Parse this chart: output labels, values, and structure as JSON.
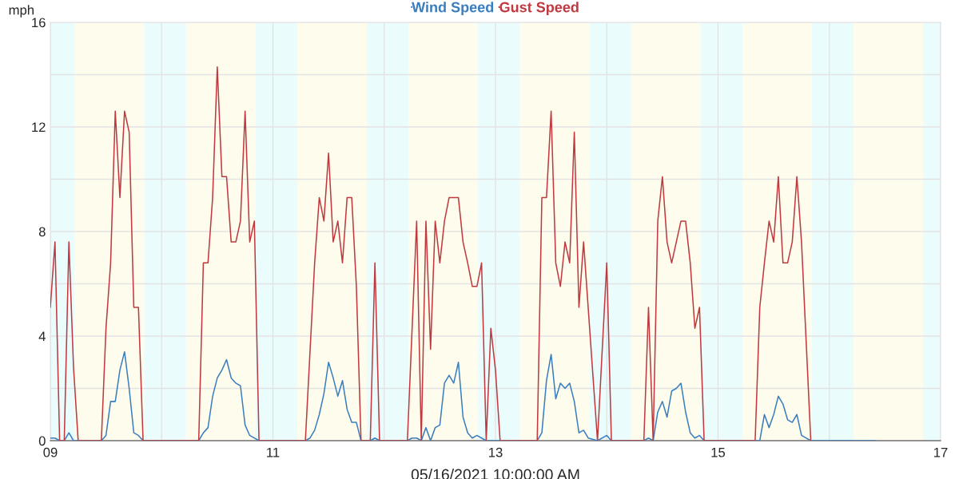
{
  "chart_data": {
    "type": "line",
    "xlabel": "05/16/2021 10:00:00 AM",
    "ylabel": "mph",
    "xlim": [
      "2021-05-09T00:00",
      "2021-05-17T00:00"
    ],
    "xticks": [
      {
        "value": "2021-05-09",
        "label": "09"
      },
      {
        "value": "2021-05-10",
        "label": null
      },
      {
        "value": "2021-05-11",
        "label": "11"
      },
      {
        "value": "2021-05-12",
        "label": null
      },
      {
        "value": "2021-05-13",
        "label": "13"
      },
      {
        "value": "2021-05-14",
        "label": null
      },
      {
        "value": "2021-05-15",
        "label": "15"
      },
      {
        "value": "2021-05-16",
        "label": null
      },
      {
        "value": "2021-05-17",
        "label": "17"
      }
    ],
    "ylim": [
      0,
      16
    ],
    "yticks": [
      0,
      {
        "value": 2,
        "label": null
      },
      4,
      {
        "value": 6,
        "label": null
      },
      8,
      {
        "value": 10,
        "label": null
      },
      12,
      {
        "value": 14,
        "label": null
      },
      16
    ],
    "grid": true,
    "legend": "top",
    "marker": "none",
    "line_style": "solid",
    "series": [
      {
        "name": "Wind Speed",
        "color": "#3a7ebf",
        "x": [
          "2021-05-09T00:00",
          "2021-05-09T01:00",
          "2021-05-09T02:00",
          "2021-05-09T03:00",
          "2021-05-09T04:00",
          "2021-05-09T05:00",
          "2021-05-09T11:00",
          "2021-05-09T12:00",
          "2021-05-09T13:00",
          "2021-05-09T14:00",
          "2021-05-09T15:00",
          "2021-05-09T16:00",
          "2021-05-09T17:00",
          "2021-05-09T18:00",
          "2021-05-09T19:00",
          "2021-05-09T20:00",
          "2021-05-10T08:00",
          "2021-05-10T09:00",
          "2021-05-10T10:00",
          "2021-05-10T11:00",
          "2021-05-10T12:00",
          "2021-05-10T13:00",
          "2021-05-10T14:00",
          "2021-05-10T15:00",
          "2021-05-10T16:00",
          "2021-05-10T17:00",
          "2021-05-10T18:00",
          "2021-05-10T19:00",
          "2021-05-10T21:00",
          "2021-05-11T07:00",
          "2021-05-11T08:00",
          "2021-05-11T09:00",
          "2021-05-11T10:00",
          "2021-05-11T11:00",
          "2021-05-11T12:00",
          "2021-05-11T13:00",
          "2021-05-11T14:00",
          "2021-05-11T15:00",
          "2021-05-11T16:00",
          "2021-05-11T17:00",
          "2021-05-11T18:00",
          "2021-05-11T19:00",
          "2021-05-11T21:00",
          "2021-05-11T22:00",
          "2021-05-11T23:00",
          "2021-05-12T05:00",
          "2021-05-12T06:00",
          "2021-05-12T07:00",
          "2021-05-12T08:00",
          "2021-05-12T09:00",
          "2021-05-12T10:00",
          "2021-05-12T11:00",
          "2021-05-12T12:00",
          "2021-05-12T13:00",
          "2021-05-12T14:00",
          "2021-05-12T15:00",
          "2021-05-12T16:00",
          "2021-05-12T17:00",
          "2021-05-12T18:00",
          "2021-05-12T19:00",
          "2021-05-12T20:00",
          "2021-05-12T21:00",
          "2021-05-12T22:00",
          "2021-05-13T09:00",
          "2021-05-13T10:00",
          "2021-05-13T11:00",
          "2021-05-13T12:00",
          "2021-05-13T13:00",
          "2021-05-13T14:00",
          "2021-05-13T15:00",
          "2021-05-13T16:00",
          "2021-05-13T17:00",
          "2021-05-13T18:00",
          "2021-05-13T19:00",
          "2021-05-13T20:00",
          "2021-05-13T22:00",
          "2021-05-14T00:00",
          "2021-05-14T01:00",
          "2021-05-14T08:00",
          "2021-05-14T09:00",
          "2021-05-14T10:00",
          "2021-05-14T11:00",
          "2021-05-14T12:00",
          "2021-05-14T13:00",
          "2021-05-14T14:00",
          "2021-05-14T15:00",
          "2021-05-14T16:00",
          "2021-05-14T17:00",
          "2021-05-14T18:00",
          "2021-05-14T19:00",
          "2021-05-14T20:00",
          "2021-05-14T21:00",
          "2021-05-15T09:00",
          "2021-05-15T10:00",
          "2021-05-15T11:00",
          "2021-05-15T12:00",
          "2021-05-15T13:00",
          "2021-05-15T14:00",
          "2021-05-15T15:00",
          "2021-05-15T16:00",
          "2021-05-15T17:00",
          "2021-05-15T18:00",
          "2021-05-15T20:00",
          "2021-05-16T10:00"
        ],
        "values": [
          0.1,
          0.1,
          0,
          0,
          0.3,
          0,
          0,
          0.2,
          1.5,
          1.5,
          2.7,
          3.4,
          2.0,
          0.3,
          0.2,
          0,
          0,
          0.3,
          0.5,
          1.7,
          2.4,
          2.7,
          3.1,
          2.4,
          2.2,
          2.1,
          0.6,
          0.2,
          0,
          0,
          0.1,
          0.4,
          1.0,
          1.8,
          3.0,
          2.4,
          1.7,
          2.3,
          1.2,
          0.7,
          0.7,
          0,
          0,
          0.1,
          0,
          0,
          0.1,
          0.1,
          0,
          0.5,
          0,
          0.5,
          0.6,
          2.2,
          2.5,
          2.2,
          3.0,
          0.9,
          0.3,
          0.1,
          0.2,
          0.1,
          0,
          0,
          0.3,
          2.3,
          3.3,
          1.6,
          2.2,
          2.0,
          2.2,
          1.5,
          0.3,
          0.4,
          0.1,
          0,
          0.2,
          0,
          0,
          0.1,
          0,
          1.1,
          1.5,
          0.9,
          1.9,
          2.0,
          2.2,
          1.1,
          0.3,
          0.1,
          0.2,
          0,
          0,
          1.0,
          0.5,
          1.0,
          1.7,
          1.4,
          0.8,
          0.7,
          1.0,
          0.2,
          0,
          0
        ]
      },
      {
        "name": "Gust Speed",
        "color": "#c0393f",
        "x": [
          "2021-05-09T00:00",
          "2021-05-09T01:00",
          "2021-05-09T02:00",
          "2021-05-09T03:00",
          "2021-05-09T04:00",
          "2021-05-09T05:00",
          "2021-05-09T06:00",
          "2021-05-09T11:00",
          "2021-05-09T12:00",
          "2021-05-09T13:00",
          "2021-05-09T14:00",
          "2021-05-09T15:00",
          "2021-05-09T16:00",
          "2021-05-09T17:00",
          "2021-05-09T18:00",
          "2021-05-09T19:00",
          "2021-05-09T20:00",
          "2021-05-10T08:00",
          "2021-05-10T09:00",
          "2021-05-10T10:00",
          "2021-05-10T11:00",
          "2021-05-10T12:00",
          "2021-05-10T13:00",
          "2021-05-10T14:00",
          "2021-05-10T15:00",
          "2021-05-10T16:00",
          "2021-05-10T17:00",
          "2021-05-10T18:00",
          "2021-05-10T19:00",
          "2021-05-10T20:00",
          "2021-05-10T21:00",
          "2021-05-11T07:00",
          "2021-05-11T09:00",
          "2021-05-11T10:00",
          "2021-05-11T11:00",
          "2021-05-11T12:00",
          "2021-05-11T13:00",
          "2021-05-11T14:00",
          "2021-05-11T15:00",
          "2021-05-11T16:00",
          "2021-05-11T17:00",
          "2021-05-11T18:00",
          "2021-05-11T19:00",
          "2021-05-11T21:00",
          "2021-05-11T22:00",
          "2021-05-11T23:00",
          "2021-05-12T05:00",
          "2021-05-12T07:00",
          "2021-05-12T08:00",
          "2021-05-12T09:00",
          "2021-05-12T10:00",
          "2021-05-12T11:00",
          "2021-05-12T12:00",
          "2021-05-12T13:00",
          "2021-05-12T14:00",
          "2021-05-12T15:00",
          "2021-05-12T16:00",
          "2021-05-12T17:00",
          "2021-05-12T18:00",
          "2021-05-12T19:00",
          "2021-05-12T20:00",
          "2021-05-12T21:00",
          "2021-05-12T22:00",
          "2021-05-12T23:00",
          "2021-05-13T00:00",
          "2021-05-13T01:00",
          "2021-05-13T09:00",
          "2021-05-13T10:00",
          "2021-05-13T11:00",
          "2021-05-13T12:00",
          "2021-05-13T13:00",
          "2021-05-13T14:00",
          "2021-05-13T15:00",
          "2021-05-13T16:00",
          "2021-05-13T17:00",
          "2021-05-13T18:00",
          "2021-05-13T19:00",
          "2021-05-13T22:00",
          "2021-05-14T00:00",
          "2021-05-14T01:00",
          "2021-05-14T08:00",
          "2021-05-14T09:00",
          "2021-05-14T10:00",
          "2021-05-14T11:00",
          "2021-05-14T12:00",
          "2021-05-14T13:00",
          "2021-05-14T14:00",
          "2021-05-14T15:00",
          "2021-05-14T16:00",
          "2021-05-14T17:00",
          "2021-05-14T18:00",
          "2021-05-14T19:00",
          "2021-05-14T20:00",
          "2021-05-14T21:00",
          "2021-05-15T08:00",
          "2021-05-15T09:00",
          "2021-05-15T10:00",
          "2021-05-15T11:00",
          "2021-05-15T12:00",
          "2021-05-15T13:00",
          "2021-05-15T14:00",
          "2021-05-15T15:00",
          "2021-05-15T16:00",
          "2021-05-15T17:00",
          "2021-05-15T18:00",
          "2021-05-15T20:00"
        ],
        "values": [
          5.1,
          7.6,
          0,
          0,
          7.6,
          2.8,
          0,
          0,
          4.3,
          6.8,
          12.6,
          9.3,
          12.6,
          11.8,
          5.1,
          5.1,
          0,
          0,
          6.8,
          6.8,
          9.3,
          14.3,
          10.1,
          10.1,
          7.6,
          7.6,
          8.4,
          12.6,
          7.6,
          8.4,
          0,
          0,
          6.8,
          9.3,
          8.4,
          11.0,
          7.6,
          8.4,
          6.8,
          9.3,
          9.3,
          5.9,
          0,
          0,
          6.8,
          0,
          0,
          8.4,
          0,
          8.4,
          3.5,
          8.4,
          6.8,
          8.4,
          9.3,
          9.3,
          9.3,
          7.6,
          6.8,
          5.9,
          5.9,
          6.8,
          0,
          4.3,
          2.7,
          0,
          0,
          9.3,
          9.3,
          12.6,
          6.8,
          5.9,
          7.6,
          6.8,
          11.8,
          5.1,
          7.6,
          0,
          6.8,
          0,
          0,
          5.1,
          0,
          8.4,
          10.1,
          7.6,
          6.8,
          7.6,
          8.4,
          8.4,
          6.8,
          4.3,
          5.1,
          0,
          0,
          5.1,
          6.8,
          8.4,
          7.6,
          10.1,
          6.8,
          6.8,
          7.6,
          10.1,
          7.6,
          0
        ]
      }
    ],
    "bands": [
      {
        "axis": "x",
        "from": "2021-05-09T00:00",
        "to": "2021-05-09T05:15",
        "color": "#ebfcfc"
      },
      {
        "axis": "x",
        "from": "2021-05-09T05:15",
        "to": "2021-05-09T20:15",
        "color": "#fefcec"
      },
      {
        "axis": "x",
        "from": "2021-05-09T20:15",
        "to": "2021-05-10T05:15",
        "color": "#ebfcfc"
      },
      {
        "axis": "x",
        "from": "2021-05-10T05:15",
        "to": "2021-05-10T20:15",
        "color": "#fefcec"
      },
      {
        "axis": "x",
        "from": "2021-05-10T20:15",
        "to": "2021-05-11T05:15",
        "color": "#ebfcfc"
      },
      {
        "axis": "x",
        "from": "2021-05-11T05:15",
        "to": "2021-05-11T20:15",
        "color": "#fefcec"
      },
      {
        "axis": "x",
        "from": "2021-05-11T20:15",
        "to": "2021-05-12T05:15",
        "color": "#ebfcfc"
      },
      {
        "axis": "x",
        "from": "2021-05-12T05:15",
        "to": "2021-05-12T20:15",
        "color": "#fefcec"
      },
      {
        "axis": "x",
        "from": "2021-05-12T20:15",
        "to": "2021-05-13T05:15",
        "color": "#ebfcfc"
      },
      {
        "axis": "x",
        "from": "2021-05-13T05:15",
        "to": "2021-05-13T20:15",
        "color": "#fefcec"
      },
      {
        "axis": "x",
        "from": "2021-05-13T20:15",
        "to": "2021-05-14T05:15",
        "color": "#ebfcfc"
      },
      {
        "axis": "x",
        "from": "2021-05-14T05:15",
        "to": "2021-05-14T20:15",
        "color": "#fefcec"
      },
      {
        "axis": "x",
        "from": "2021-05-14T20:15",
        "to": "2021-05-15T05:15",
        "color": "#ebfcfc"
      },
      {
        "axis": "x",
        "from": "2021-05-15T05:15",
        "to": "2021-05-15T20:15",
        "color": "#fefcec"
      },
      {
        "axis": "x",
        "from": "2021-05-15T20:15",
        "to": "2021-05-16T05:15",
        "color": "#ebfcfc"
      },
      {
        "axis": "x",
        "from": "2021-05-16T05:15",
        "to": "2021-05-16T20:15",
        "color": "#fefcec"
      },
      {
        "axis": "x",
        "from": "2021-05-16T20:15",
        "to": "2021-05-17T00:00",
        "color": "#ebfcfc"
      }
    ]
  }
}
